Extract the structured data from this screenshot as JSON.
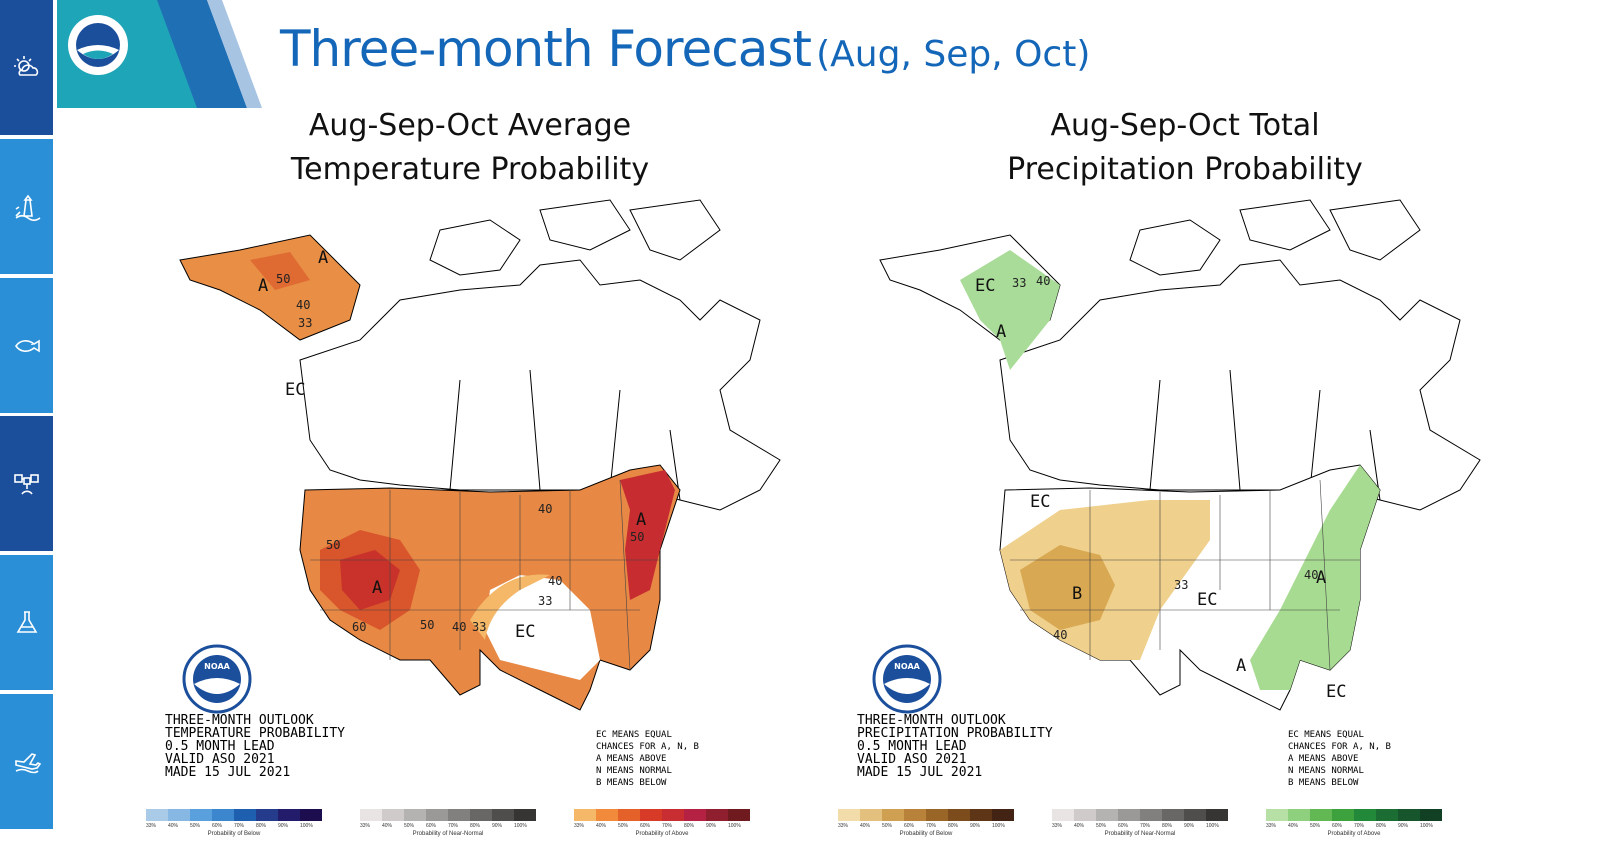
{
  "header": {
    "title_main": "Three-month Forecast",
    "title_sub": "(Aug, Sep, Oct)"
  },
  "sidebar": {
    "items": [
      {
        "icon": "sun-cloud-icon",
        "color": "#1b4f9c"
      },
      {
        "icon": "lighthouse-icon",
        "color": "#2a8fd6"
      },
      {
        "icon": "fish-icon",
        "color": "#2a8fd6"
      },
      {
        "icon": "satellite-icon",
        "color": "#1b4f9c"
      },
      {
        "icon": "flask-icon",
        "color": "#2a8fd6"
      },
      {
        "icon": "airplane-icon",
        "color": "#2a8fd6"
      }
    ]
  },
  "temperature_map": {
    "subtitle_line1": "Aug-Sep-Oct Average",
    "subtitle_line2": "Temperature Probability",
    "region_labels": {
      "alaska_a1": "A",
      "alaska_a2": "A",
      "west_a": "A",
      "east_a": "A",
      "ec_canada": "EC",
      "ec_texas": "EC"
    },
    "contour_labels": [
      "50",
      "40",
      "33",
      "50",
      "60",
      "50",
      "40",
      "33",
      "40",
      "33",
      "40",
      "50"
    ],
    "info_lines": [
      "THREE-MONTH OUTLOOK",
      "TEMPERATURE PROBABILITY",
      "0.5 MONTH LEAD",
      "VALID ASO 2021",
      "MADE 15 JUL 2021"
    ],
    "legend_lines": [
      "EC MEANS EQUAL",
      "CHANCES FOR A, N, B",
      "A MEANS ABOVE",
      "N MEANS NORMAL",
      "B MEANS BELOW"
    ],
    "colorbars": [
      {
        "caption": "Probability of Below",
        "colors": [
          "#a9cbe8",
          "#86b8e3",
          "#5aa0dc",
          "#3b86cc",
          "#1f5fb0",
          "#253c8c",
          "#231c6b",
          "#1b0d4e"
        ]
      },
      {
        "caption": "Probability of Near-Normal",
        "colors": [
          "#e8e4e4",
          "#cfcbcb",
          "#b5b2b2",
          "#9b9898",
          "#827f7f",
          "#696666",
          "#504d4d",
          "#373434"
        ]
      },
      {
        "caption": "Probability of Above",
        "colors": [
          "#f4b868",
          "#f28a3c",
          "#e4622a",
          "#d83a28",
          "#c82d32",
          "#b52142",
          "#8f1f2e",
          "#6e1a1e"
        ]
      }
    ],
    "colorbar_ticks": [
      "33%",
      "40%",
      "50%",
      "60%",
      "70%",
      "80%",
      "90%",
      "100%"
    ]
  },
  "precipitation_map": {
    "subtitle_line1": "Aug-Sep-Oct Total",
    "subtitle_line2": "Precipitation Probability",
    "region_labels": {
      "ec_alaska": "EC",
      "alaska_a": "A",
      "ec_west": "EC",
      "west_b": "B",
      "ec_central": "EC",
      "east_a": "A",
      "east_a2": "A",
      "ec_florida": "EC"
    },
    "contour_labels": [
      "33",
      "40",
      "40",
      "33",
      "40"
    ],
    "info_lines": [
      "THREE-MONTH OUTLOOK",
      "PRECIPITATION PROBABILITY",
      "0.5 MONTH LEAD",
      "VALID ASO 2021",
      "MADE 15 JUL 2021"
    ],
    "legend_lines": [
      "EC MEANS EQUAL",
      "CHANCES FOR A, N, B",
      "A MEANS ABOVE",
      "N MEANS NORMAL",
      "B MEANS BELOW"
    ],
    "colorbars": [
      {
        "caption": "Probability of Below",
        "colors": [
          "#f2dcaa",
          "#e3c07e",
          "#cf9f52",
          "#b8823a",
          "#9a6628",
          "#7d4c1c",
          "#5e3516",
          "#432414"
        ]
      },
      {
        "caption": "Probability of Near-Normal",
        "colors": [
          "#e8e4e4",
          "#cfcbcb",
          "#b5b2b2",
          "#9b9898",
          "#827f7f",
          "#696666",
          "#504d4d",
          "#373434"
        ]
      },
      {
        "caption": "Probability of Above",
        "colors": [
          "#b6e0a6",
          "#8fd07f",
          "#62b852",
          "#3da23e",
          "#23893a",
          "#1c6d33",
          "#17552c",
          "#114024"
        ]
      }
    ],
    "colorbar_ticks": [
      "33%",
      "40%",
      "50%",
      "60%",
      "70%",
      "80%",
      "90%",
      "100%"
    ]
  }
}
